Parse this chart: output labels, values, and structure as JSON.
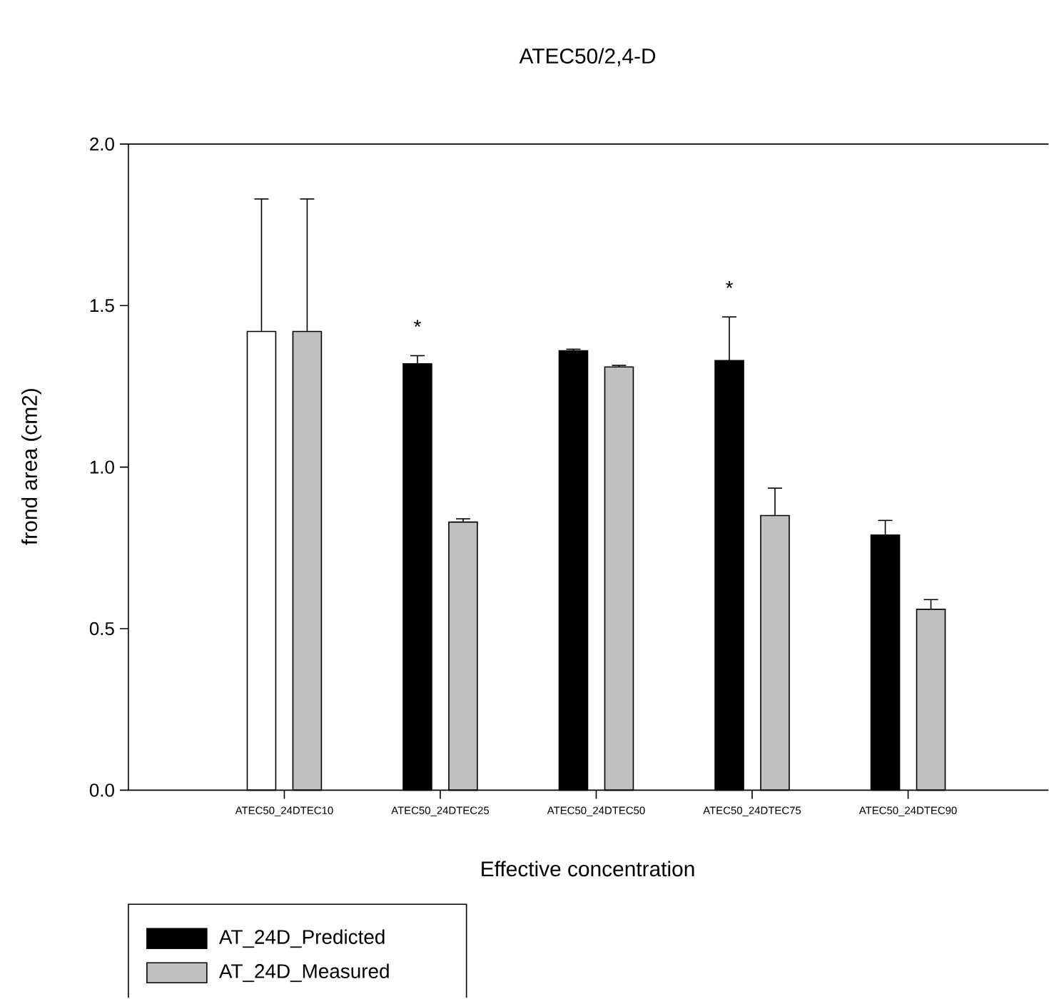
{
  "chart_data": {
    "type": "bar",
    "title": "ATEC50/2,4-D",
    "xlabel": "Effective concentration",
    "ylabel": "frond area (cm2)",
    "categories": [
      "ATEC50_24DTEC10",
      "ATEC50_24DTEC25",
      "ATEC50_24DTEC50",
      "ATEC50_24DTEC75",
      "ATEC50_24DTEC90"
    ],
    "series": [
      {
        "name": "AT_24D_Predicted",
        "color": "#000000",
        "colors": [
          "#ffffff",
          "#000000",
          "#000000",
          "#000000",
          "#000000"
        ],
        "values": [
          1.42,
          1.32,
          1.36,
          1.33,
          0.79
        ],
        "errors": [
          [
            1.42,
            1.83
          ],
          [
            1.32,
            1.345
          ],
          [
            1.36,
            1.365
          ],
          [
            1.33,
            1.465
          ],
          [
            0.79,
            0.835
          ]
        ]
      },
      {
        "name": "AT_24D_Measured",
        "color": "#c0c0c0",
        "values": [
          1.42,
          0.83,
          1.31,
          0.85,
          0.56
        ],
        "errors": [
          [
            1.42,
            1.83
          ],
          [
            0.83,
            0.84
          ],
          [
            1.31,
            1.315
          ],
          [
            0.85,
            0.935
          ],
          [
            0.56,
            0.59
          ]
        ]
      }
    ],
    "ylim": [
      0,
      2
    ],
    "yticks": [
      {
        "value": 0,
        "label": "0.0"
      },
      {
        "value": 0.5,
        "label": "0.5"
      },
      {
        "value": 1,
        "label": "1.0"
      },
      {
        "value": 1.5,
        "label": "1.5"
      },
      {
        "value": 2,
        "label": "2.0"
      }
    ],
    "annotations": [
      "*",
      "*"
    ],
    "legend": "bottom left"
  }
}
